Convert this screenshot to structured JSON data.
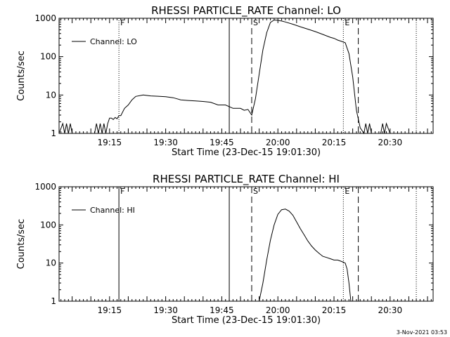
{
  "stamp": "3-Nov-2021 03:53",
  "chart_data": [
    {
      "type": "line",
      "title": "RHESSI PARTICLE_RATE Channel: LO",
      "xlabel": "Start Time (23-Dec-15 19:01:30)",
      "ylabel": "Counts/sec",
      "yscale": "log",
      "ylim": [
        1,
        1000
      ],
      "yticks": [
        1,
        10,
        100,
        1000
      ],
      "xlim": [
        "19:01:30",
        "20:41:30"
      ],
      "xticks": [
        "19:15",
        "19:30",
        "19:45",
        "20:00",
        "20:15",
        "20:30"
      ],
      "legend": "top-left",
      "series": [
        {
          "name": "Channel: LO",
          "x": [
            "19:01:30",
            "19:02:30",
            "19:03:00",
            "19:03:30",
            "19:04:00",
            "19:04:30",
            "19:05:00",
            "19:05:30",
            "19:06:00",
            "19:06:30",
            "19:07:00",
            "19:08:00",
            "19:09:00",
            "19:10:00",
            "19:11:00",
            "19:11:30",
            "19:12:00",
            "19:12:30",
            "19:13:00",
            "19:13:30",
            "19:14:00",
            "19:14:30",
            "19:15:00",
            "19:15:30",
            "19:16:00",
            "19:16:30",
            "19:17:00",
            "19:17:30",
            "19:18:00",
            "19:19:00",
            "19:20:00",
            "19:21:00",
            "19:22:00",
            "19:24:00",
            "19:26:00",
            "19:28:00",
            "19:30:00",
            "19:32:00",
            "19:34:00",
            "19:36:00",
            "19:38:00",
            "19:40:00",
            "19:42:00",
            "19:44:00",
            "19:46:00",
            "19:48:00",
            "19:50:00",
            "19:51:00",
            "19:52:00",
            "19:53:00",
            "19:54:00",
            "19:55:00",
            "19:56:00",
            "19:57:00",
            "19:58:00",
            "19:59:00",
            "20:00:00",
            "20:01:00",
            "20:02:00",
            "20:04:00",
            "20:06:00",
            "20:08:00",
            "20:10:00",
            "20:12:00",
            "20:14:00",
            "20:15:00",
            "20:16:00",
            "20:17:00",
            "20:18:00",
            "20:19:00",
            "20:20:00",
            "20:21:00",
            "20:22:00",
            "20:23:00",
            "20:23:30",
            "20:24:00",
            "20:24:30",
            "20:25:00",
            "20:25:30",
            "20:26:00",
            "20:26:30",
            "20:27:00",
            "20:27:30",
            "20:28:00",
            "20:28:30",
            "20:29:00",
            "20:30:00",
            "20:31:00",
            "20:32:00",
            "20:33:00",
            "20:34:00",
            "20:35:00"
          ],
          "y": [
            1,
            1.8,
            1,
            1.8,
            1,
            1.8,
            1,
            1,
            1,
            1,
            1,
            1,
            1,
            1,
            1,
            1.8,
            1,
            1.8,
            1,
            1.8,
            1,
            1.8,
            2.5,
            2.5,
            2.3,
            2.6,
            2.4,
            2.9,
            2.9,
            4.5,
            5.5,
            7.5,
            9.2,
            10,
            9.5,
            9.3,
            9,
            8.5,
            7.5,
            7.2,
            7,
            6.8,
            6.5,
            5.5,
            5.5,
            4.5,
            4.5,
            4,
            4.2,
            3,
            8,
            35,
            150,
            420,
            780,
            900,
            880,
            850,
            800,
            700,
            600,
            520,
            450,
            380,
            320,
            300,
            270,
            250,
            230,
            120,
            30,
            4,
            1.4,
            1,
            1.8,
            1,
            1.8,
            1,
            1,
            1,
            1,
            1,
            1,
            1.8,
            1,
            1.8,
            1,
            1,
            1,
            1,
            1,
            1
          ]
        }
      ],
      "markers": [
        {
          "time": "19:17:30",
          "style": "dotted",
          "label": "F"
        },
        {
          "time": "19:47:00",
          "style": "solid",
          "label": ""
        },
        {
          "time": "19:53:00",
          "style": "dashed",
          "label": "S"
        },
        {
          "time": "20:17:30",
          "style": "dotted",
          "label": "E"
        },
        {
          "time": "20:21:30",
          "style": "dashed",
          "label": ""
        },
        {
          "time": "20:37:00",
          "style": "dotted",
          "label": ""
        }
      ]
    },
    {
      "type": "line",
      "title": "RHESSI PARTICLE_RATE Channel: HI",
      "xlabel": "Start Time (23-Dec-15 19:01:30)",
      "ylabel": "Counts/sec",
      "yscale": "log",
      "ylim": [
        1,
        1000
      ],
      "yticks": [
        1,
        10,
        100,
        1000
      ],
      "xlim": [
        "19:01:30",
        "20:41:30"
      ],
      "xticks": [
        "19:15",
        "19:30",
        "19:45",
        "20:00",
        "20:15",
        "20:30"
      ],
      "legend": "top-left",
      "series": [
        {
          "name": "Channel: HI",
          "x": [
            "19:55:00",
            "19:56:00",
            "19:57:00",
            "19:58:00",
            "19:59:00",
            "20:00:00",
            "20:01:00",
            "20:02:00",
            "20:03:00",
            "20:04:00",
            "20:05:00",
            "20:06:00",
            "20:07:00",
            "20:08:00",
            "20:09:00",
            "20:10:00",
            "20:11:00",
            "20:12:00",
            "20:13:00",
            "20:14:00",
            "20:15:00",
            "20:16:00",
            "20:17:00",
            "20:18:00",
            "20:18:30",
            "20:19:00",
            "20:19:30"
          ],
          "y": [
            1,
            3,
            12,
            40,
            100,
            190,
            250,
            260,
            230,
            180,
            120,
            80,
            55,
            38,
            28,
            22,
            18,
            15,
            14,
            13,
            12,
            12,
            11,
            10,
            7,
            3,
            1
          ]
        }
      ],
      "markers": [
        {
          "time": "19:17:30",
          "style": "solid",
          "label": "F"
        },
        {
          "time": "19:47:00",
          "style": "solid",
          "label": ""
        },
        {
          "time": "19:53:00",
          "style": "dashed",
          "label": "S"
        },
        {
          "time": "20:17:30",
          "style": "dotted",
          "label": "E"
        },
        {
          "time": "20:21:30",
          "style": "dashed",
          "label": ""
        },
        {
          "time": "20:37:00",
          "style": "dotted",
          "label": ""
        }
      ]
    }
  ]
}
